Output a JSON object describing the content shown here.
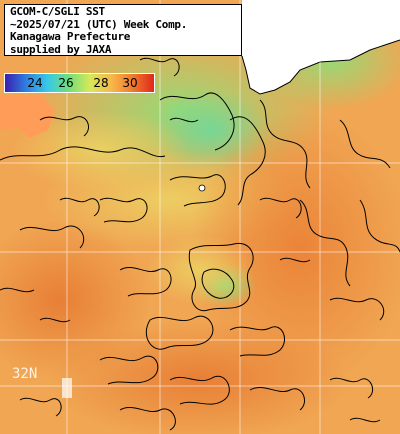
{
  "title": {
    "lines": [
      "GCOM-C/SGLI SST",
      "~2025/07/21 (UTC) Week Comp.",
      "Kanagawa Prefecture",
      "supplied by JAXA"
    ]
  },
  "colorbar": {
    "ticks": [
      "24",
      "26",
      "28",
      "30"
    ],
    "colors": [
      "#3a1fb0",
      "#2f7fe0",
      "#39c8e8",
      "#6fe07a",
      "#d8e858",
      "#f6b84a",
      "#f07a2c",
      "#e0281c"
    ]
  },
  "map": {
    "lat_label": "32N",
    "colors": {
      "sea_orange": "#f0a450",
      "sea_warm": "#e98a3c",
      "sea_green": "#9ee07a",
      "sea_yellow": "#f2d060",
      "land": "#ffffff",
      "cloud_mask": "#ff9a55",
      "grid": "#ffffff",
      "contour": "#000000"
    }
  }
}
